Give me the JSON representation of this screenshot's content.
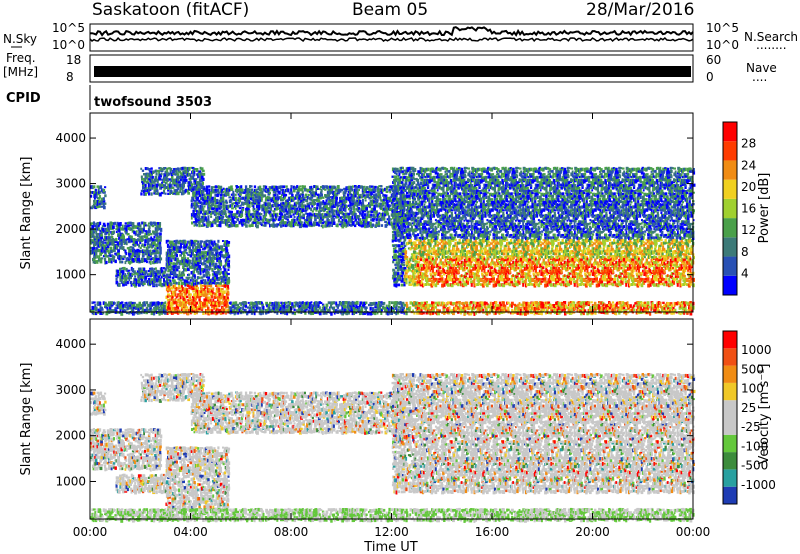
{
  "header": {
    "station": "Saskatoon (fitACF)",
    "beam": "Beam 05",
    "date": "28/Mar/2016"
  },
  "top_panels": {
    "noise_left": "N.Sky",
    "noise_right": "N.Search",
    "noise_ticks": [
      "10^5",
      "10^0"
    ],
    "freq_left_1": "Freq.",
    "freq_left_2": "[MHz]",
    "freq_ticks_left": [
      "18",
      "8"
    ],
    "freq_ticks_right": [
      "60",
      "0"
    ],
    "nave_label": "Nave",
    "cpid_label": "CPID",
    "cpid_value": "twofsound 3503",
    "dots": "........",
    "dots_short": "...."
  },
  "axes": {
    "ylabel": "Slant Range [km]",
    "yticks": [
      "4000",
      "3000",
      "2000",
      "1000"
    ],
    "xticks": [
      "00:00",
      "04:00",
      "08:00",
      "12:00",
      "16:00",
      "20:00",
      "00:00"
    ],
    "xlabel": "Time UT"
  },
  "colorbars": {
    "power": {
      "label": "Power [dB]",
      "ticks": [
        "28",
        "24",
        "20",
        "16",
        "12",
        "8",
        "4"
      ],
      "colors": [
        "#0000ff",
        "#2850b4",
        "#3c7a78",
        "#4aa04a",
        "#a0d030",
        "#f0d020",
        "#f08c14",
        "#ff3c00",
        "#ff0000"
      ]
    },
    "velocity": {
      "label": "Velocity [m s⁻¹]",
      "ticks": [
        "1000",
        "500",
        "100",
        "25",
        "-25",
        "-100",
        "-500",
        "-1000"
      ],
      "colors": [
        "#1e3cb4",
        "#28a0a0",
        "#3c8c3c",
        "#64c83c",
        "#c8c8c8",
        "#c8c8c8",
        "#f0c828",
        "#f08c14",
        "#f05014",
        "#ff0000"
      ]
    }
  },
  "chart_data": {
    "type": "heatmap",
    "panels": [
      "Power [dB]",
      "Velocity [m s⁻¹]"
    ],
    "time_range_hours": [
      0,
      24
    ],
    "ylim_km": [
      180,
      4550
    ],
    "echo_regions": [
      {
        "t0": 0.0,
        "t1": 0.6,
        "r0": 2500,
        "r1": 3000
      },
      {
        "t0": 0.0,
        "t1": 2.8,
        "r0": 1300,
        "r1": 2200
      },
      {
        "t0": 1.0,
        "t1": 3.0,
        "r0": 800,
        "r1": 1200
      },
      {
        "t0": 3.0,
        "t1": 5.5,
        "r0": 400,
        "r1": 1800
      },
      {
        "t0": 2.0,
        "t1": 4.5,
        "r0": 2800,
        "r1": 3400
      },
      {
        "t0": 4.0,
        "t1": 12.5,
        "r0": 2100,
        "r1": 3000
      },
      {
        "t0": 12.0,
        "t1": 24.0,
        "r0": 800,
        "r1": 3400
      },
      {
        "t0": 0.0,
        "t1": 24.0,
        "r0": 180,
        "r1": 450
      }
    ],
    "power_peak_db": 28,
    "velocity_range_ms": [
      -1000,
      1000
    ]
  }
}
